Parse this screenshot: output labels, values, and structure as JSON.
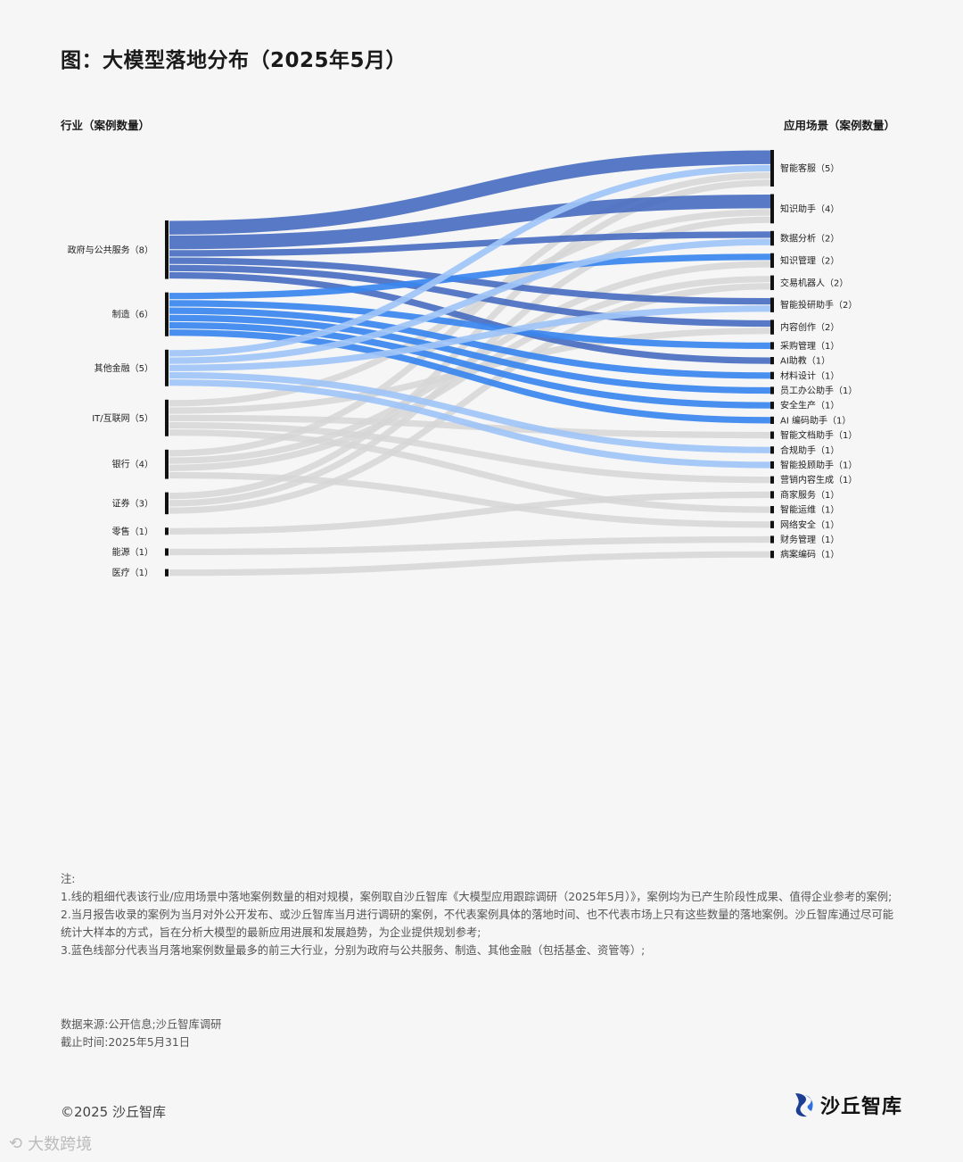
{
  "title": "图：大模型落地分布（2025年5月）",
  "left_header": "行业（案例数量）",
  "right_header": "应用场景（案例数量）",
  "colors": {
    "gov": "#4a6fc1",
    "mfg": "#3a86ee",
    "fin": "#9fc4f7",
    "other": "#d6d6d6",
    "node": "#111111"
  },
  "chart_data": {
    "type": "sankey",
    "left_nodes": [
      {
        "key": "gov",
        "name": "政府与公共服务",
        "count": 8,
        "label": "政府与公共服务（8）"
      },
      {
        "key": "mfg",
        "name": "制造",
        "count": 6,
        "label": "制造（6）"
      },
      {
        "key": "fin",
        "name": "其他金融",
        "count": 5,
        "label": "其他金融（5）"
      },
      {
        "key": "it",
        "name": "IT/互联网",
        "count": 5,
        "label": "IT/互联网（5）"
      },
      {
        "key": "bank",
        "name": "银行",
        "count": 4,
        "label": "银行（4）"
      },
      {
        "key": "sec",
        "name": "证券",
        "count": 3,
        "label": "证券（3）"
      },
      {
        "key": "retail",
        "name": "零售",
        "count": 1,
        "label": "零售（1）"
      },
      {
        "key": "energy",
        "name": "能源",
        "count": 1,
        "label": "能源（1）"
      },
      {
        "key": "med",
        "name": "医疗",
        "count": 1,
        "label": "医疗（1）"
      }
    ],
    "right_nodes": [
      {
        "key": "kf",
        "name": "智能客服",
        "count": 5,
        "label": "智能客服（5）"
      },
      {
        "key": "zs",
        "name": "知识助手",
        "count": 4,
        "label": "知识助手（4）"
      },
      {
        "key": "sj",
        "name": "数据分析",
        "count": 2,
        "label": "数据分析（2）"
      },
      {
        "key": "zg",
        "name": "知识管理",
        "count": 2,
        "label": "知识管理（2）"
      },
      {
        "key": "jy",
        "name": "交易机器人",
        "count": 2,
        "label": "交易机器人（2）"
      },
      {
        "key": "ty",
        "name": "智能投研助手",
        "count": 2,
        "label": "智能投研助手（2）"
      },
      {
        "key": "nr",
        "name": "内容创作",
        "count": 2,
        "label": "内容创作（2）"
      },
      {
        "key": "cg",
        "name": "采购管理",
        "count": 1,
        "label": "采购管理（1）"
      },
      {
        "key": "aj",
        "name": "AI助教",
        "count": 1,
        "label": "AI助教（1）"
      },
      {
        "key": "cl",
        "name": "材料设计",
        "count": 1,
        "label": "材料设计（1）"
      },
      {
        "key": "yg",
        "name": "员工办公助手",
        "count": 1,
        "label": "员工办公助手（1）"
      },
      {
        "key": "aq",
        "name": "安全生产",
        "count": 1,
        "label": "安全生产（1）"
      },
      {
        "key": "bm",
        "name": "AI 编码助手",
        "count": 1,
        "label": "AI 编码助手（1）"
      },
      {
        "key": "wd",
        "name": "智能文档助手",
        "count": 1,
        "label": "智能文档助手（1）"
      },
      {
        "key": "hg",
        "name": "合规助手",
        "count": 1,
        "label": "合规助手（1）"
      },
      {
        "key": "tg",
        "name": "智能投顾助手",
        "count": 1,
        "label": "智能投顾助手（1）"
      },
      {
        "key": "yx",
        "name": "营销内容生成",
        "count": 1,
        "label": "营销内容生成（1）"
      },
      {
        "key": "sw",
        "name": "商家服务",
        "count": 1,
        "label": "商家服务（1）"
      },
      {
        "key": "yw",
        "name": "智能运维",
        "count": 1,
        "label": "智能运维（1）"
      },
      {
        "key": "wl",
        "name": "网络安全",
        "count": 1,
        "label": "网络安全（1）"
      },
      {
        "key": "cw",
        "name": "财务管理",
        "count": 1,
        "label": "财务管理（1）"
      },
      {
        "key": "ba",
        "name": "病案编码",
        "count": 1,
        "label": "病案编码（1）"
      }
    ],
    "links": [
      {
        "source": "gov",
        "target": "kf",
        "value": 2
      },
      {
        "source": "gov",
        "target": "zs",
        "value": 2
      },
      {
        "source": "gov",
        "target": "sj",
        "value": 1
      },
      {
        "source": "gov",
        "target": "ty",
        "value": 1
      },
      {
        "source": "gov",
        "target": "nr",
        "value": 1
      },
      {
        "source": "gov",
        "target": "aj",
        "value": 1
      },
      {
        "source": "mfg",
        "target": "zg",
        "value": 1
      },
      {
        "source": "mfg",
        "target": "cg",
        "value": 1
      },
      {
        "source": "mfg",
        "target": "cl",
        "value": 1
      },
      {
        "source": "mfg",
        "target": "yg",
        "value": 1
      },
      {
        "source": "mfg",
        "target": "aq",
        "value": 1
      },
      {
        "source": "mfg",
        "target": "bm",
        "value": 1
      },
      {
        "source": "fin",
        "target": "kf",
        "value": 1
      },
      {
        "source": "fin",
        "target": "sj",
        "value": 1
      },
      {
        "source": "fin",
        "target": "ty",
        "value": 1
      },
      {
        "source": "fin",
        "target": "hg",
        "value": 1
      },
      {
        "source": "fin",
        "target": "tg",
        "value": 1
      },
      {
        "source": "it",
        "target": "zs",
        "value": 1
      },
      {
        "source": "it",
        "target": "nr",
        "value": 1
      },
      {
        "source": "it",
        "target": "wd",
        "value": 1
      },
      {
        "source": "it",
        "target": "yx",
        "value": 1
      },
      {
        "source": "it",
        "target": "yw",
        "value": 1
      },
      {
        "source": "bank",
        "target": "kf",
        "value": 1
      },
      {
        "source": "bank",
        "target": "zg",
        "value": 1
      },
      {
        "source": "bank",
        "target": "jy",
        "value": 1
      },
      {
        "source": "bank",
        "target": "wl",
        "value": 1
      },
      {
        "source": "sec",
        "target": "kf",
        "value": 1
      },
      {
        "source": "sec",
        "target": "zs",
        "value": 1
      },
      {
        "source": "sec",
        "target": "jy",
        "value": 1
      },
      {
        "source": "retail",
        "target": "sw",
        "value": 1
      },
      {
        "source": "energy",
        "target": "cw",
        "value": 1
      },
      {
        "source": "med",
        "target": "ba",
        "value": 1
      }
    ]
  },
  "notes": {
    "heading": "注:",
    "items": [
      "1.线的粗细代表该行业/应用场景中落地案例数量的相对规模，案例取自沙丘智库《大模型应用跟踪调研（2025年5月）》，案例均为已产生阶段性成果、值得企业参考的案例;",
      "2.当月报告收录的案例为当月对外公开发布、或沙丘智库当月进行调研的案例，不代表案例具体的落地时间、也不代表市场上只有这些数量的落地案例。沙丘智库通过尽可能统计大样本的方式，旨在分析大模型的最新应用进展和发展趋势，为企业提供规划参考;",
      "3.蓝色线部分代表当月落地案例数量最多的前三大行业，分别为政府与公共服务、制造、其他金融（包括基金、资管等）;"
    ]
  },
  "source": {
    "data_source": "数据来源:公开信息;沙丘智库调研",
    "cutoff": "截止时间:2025年5月31日"
  },
  "copyright": "©2025 沙丘智库",
  "brand": "沙丘智库",
  "footer_watermark": "大数跨境"
}
